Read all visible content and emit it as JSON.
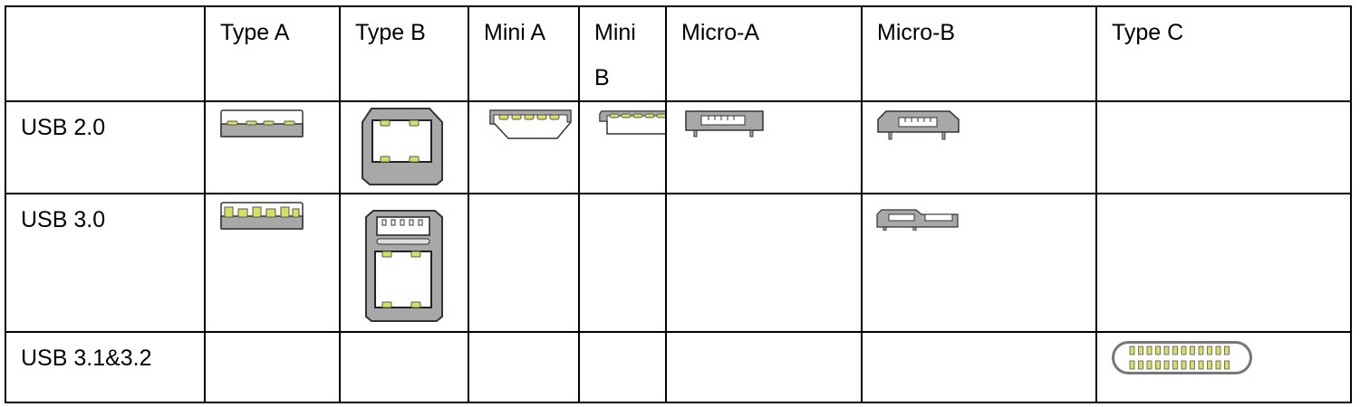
{
  "columns": [
    "",
    "Type A",
    "Type B",
    "Mini A",
    "Mini B",
    "Micro-A",
    "Micro-B",
    "Type C"
  ],
  "rows": [
    {
      "label": "USB 2.0",
      "connectors": [
        "usb2-type-a",
        "usb2-type-b",
        "usb2-mini-a",
        "usb2-mini-b",
        "usb2-micro-a",
        "usb2-micro-b",
        ""
      ]
    },
    {
      "label": "USB 3.0",
      "connectors": [
        "usb3-type-a",
        "usb3-type-b",
        "",
        "",
        "",
        "usb3-micro-b",
        ""
      ]
    },
    {
      "label": "USB 3.1&3.2",
      "connectors": [
        "",
        "",
        "",
        "",
        "",
        "",
        "usb-type-c"
      ]
    }
  ],
  "colors": {
    "connector_body": "#a8a8a8",
    "pin": "#d8e060",
    "outline": "#333333"
  }
}
